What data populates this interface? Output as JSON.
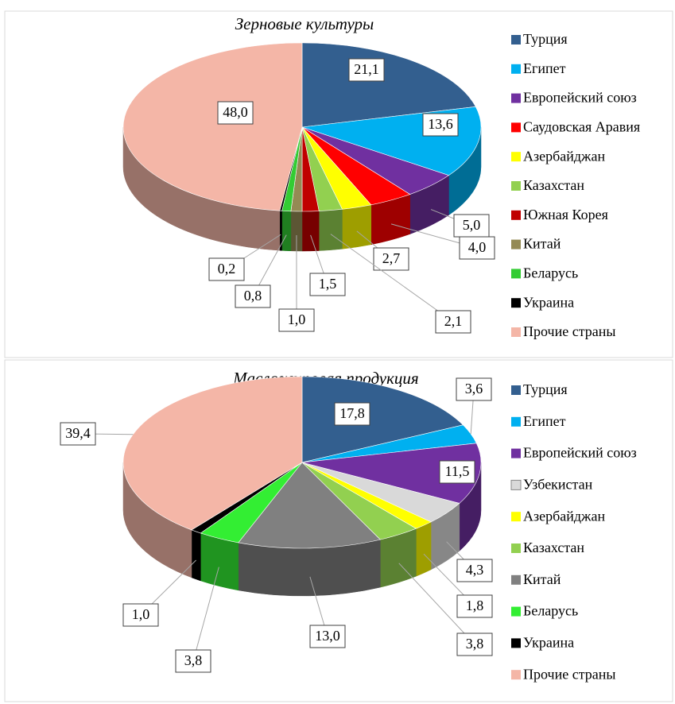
{
  "chart_data": [
    {
      "type": "pie",
      "title": "Зерновые культуры",
      "categories": [
        "Турция",
        "Египет",
        "Европейский союз",
        "Саудовская Аравия",
        "Азербайджан",
        "Казахстан",
        "Южная Корея",
        "Китай",
        "Беларусь",
        "Украина",
        "Прочие страны"
      ],
      "values": [
        21.1,
        13.6,
        5.0,
        4.0,
        2.7,
        2.1,
        1.5,
        1.0,
        0.8,
        0.2,
        48.0
      ],
      "value_labels": [
        "21,1",
        "13,6",
        "5,0",
        "4,0",
        "2,7",
        "2,1",
        "1,5",
        "1,0",
        "0,8",
        "0,2",
        "48,0"
      ],
      "colors": [
        "#335f8f",
        "#00b0f0",
        "#7030a0",
        "#ff0000",
        "#ffff00",
        "#92d050",
        "#c00000",
        "#948a54",
        "#33cc33",
        "#000000",
        "#f4b6a7"
      ]
    },
    {
      "type": "pie",
      "title": "Масложировая продукция",
      "categories": [
        "Турция",
        "Египет",
        "Европейский союз",
        "Узбекистан",
        "Азербайджан",
        "Казахстан",
        "Китай",
        "Беларусь",
        "Украина",
        "Прочие страны"
      ],
      "values": [
        17.8,
        3.6,
        11.5,
        4.3,
        1.8,
        3.8,
        13.0,
        3.8,
        1.0,
        39.4
      ],
      "value_labels": [
        "17,8",
        "3,6",
        "11,5",
        "4,3",
        "1,8",
        "3,8",
        "13,0",
        "3,8",
        "1,0",
        "39,4"
      ],
      "colors": [
        "#335f8f",
        "#00b0f0",
        "#7030a0",
        "#d9d9d9",
        "#ffff00",
        "#92d050",
        "#808080",
        "#33ee33",
        "#000000",
        "#f4b6a7"
      ]
    }
  ]
}
